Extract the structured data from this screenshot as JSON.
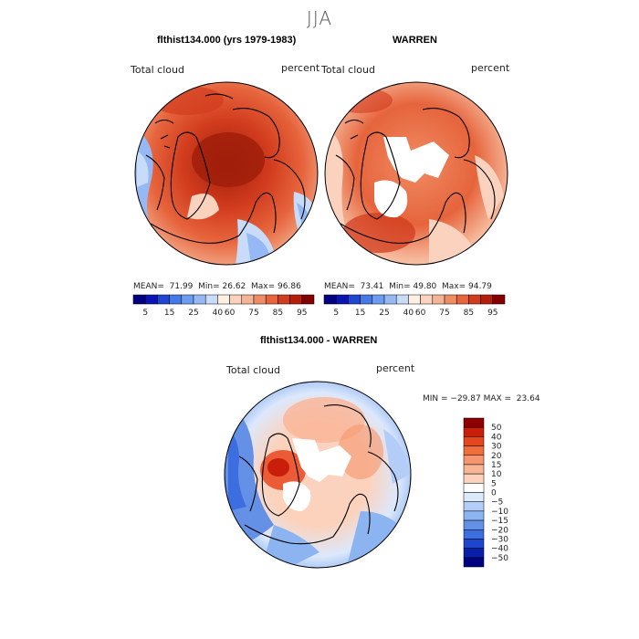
{
  "main_title": "JJA",
  "chart_data": [
    {
      "type": "polar_map",
      "title": "flthist134.000 (yrs 1979-1983)",
      "variable_label": "Total cloud",
      "units_label": "percent",
      "stats": {
        "mean_label": "MEAN=",
        "mean": "71.99",
        "min_label": "Min=",
        "min": "26.62",
        "max_label": "Max=",
        "max": "96.86"
      },
      "colorbar_levels": [
        "5",
        "15",
        "25",
        "40",
        "60",
        "75",
        "85",
        "95"
      ]
    },
    {
      "type": "polar_map",
      "title": "WARREN",
      "variable_label": "Total cloud",
      "units_label": "percent",
      "stats": {
        "mean_label": "MEAN=",
        "mean": "73.41",
        "min_label": "Min=",
        "min": "49.80",
        "max_label": "Max=",
        "max": "94.79"
      },
      "colorbar_levels": [
        "5",
        "15",
        "25",
        "40",
        "60",
        "75",
        "85",
        "95"
      ]
    },
    {
      "type": "polar_map_difference",
      "title": "flthist134.000 - WARREN",
      "variable_label": "Total cloud",
      "units_label": "percent",
      "stats_text": "MIN = −29.87 MAX =  23.64",
      "colorbar_levels": [
        "50",
        "40",
        "30",
        "20",
        "15",
        "10",
        "5",
        "0",
        "−5",
        "−10",
        "−15",
        "−20",
        "−30",
        "−40",
        "−50"
      ]
    }
  ],
  "colors": {
    "abs_scale": [
      "#000080",
      "#0a14b4",
      "#1e46d2",
      "#4678e6",
      "#6e9bf0",
      "#96b9f5",
      "#c8dcfa",
      "#fff0e6",
      "#fad2be",
      "#f5b496",
      "#f08c64",
      "#e6643c",
      "#d23c1e",
      "#b41e0a",
      "#820000"
    ],
    "diff_scale_top_to_bottom": [
      "#8c0000",
      "#c81e0a",
      "#e6461e",
      "#f06e3c",
      "#f5966e",
      "#fab496",
      "#fcd2bc",
      "#ffffff",
      "#dce8fc",
      "#b4cdf8",
      "#8cb4f0",
      "#6490e6",
      "#3c6ee0",
      "#1e46cc",
      "#0a1eaa",
      "#000080"
    ],
    "land_outline": "#000000"
  }
}
